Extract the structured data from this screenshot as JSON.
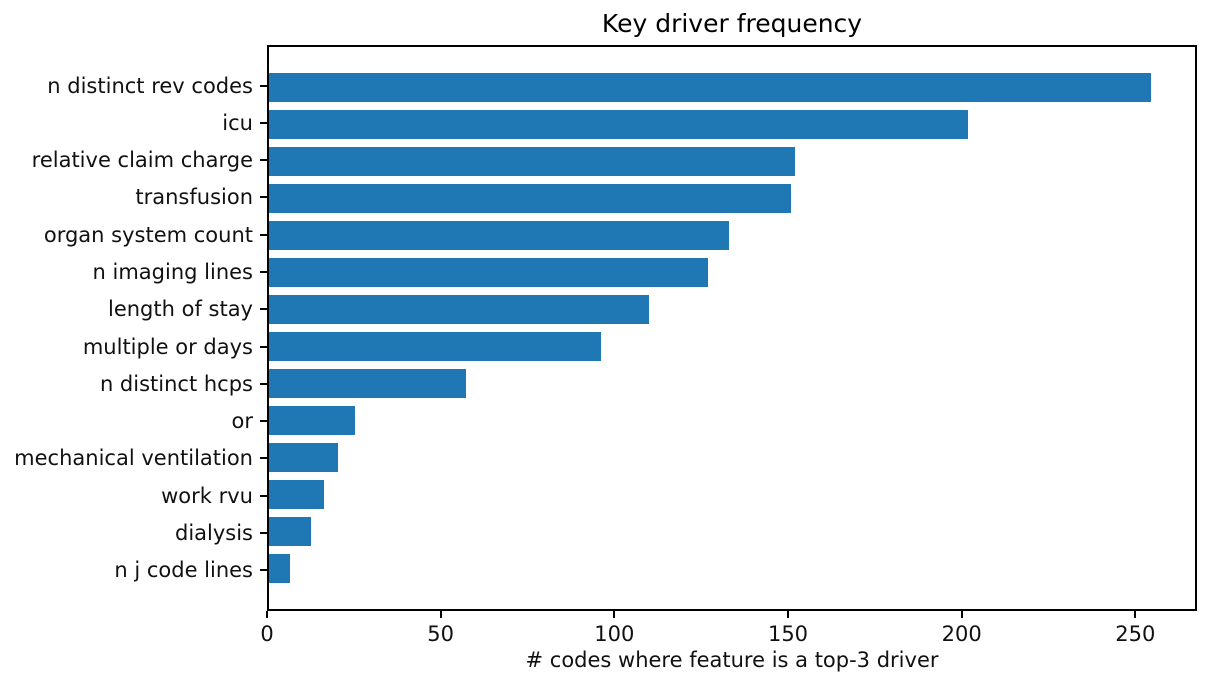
{
  "chart_data": {
    "type": "bar",
    "orientation": "horizontal",
    "title": "Key driver frequency",
    "xlabel": "# codes where feature is a top-3 driver",
    "ylabel": "",
    "categories": [
      "n distinct rev codes",
      "icu",
      "relative claim charge",
      "transfusion",
      "organ system count",
      "n imaging lines",
      "length of stay",
      "multiple or days",
      "n distinct hcps",
      "or",
      "mechanical ventilation",
      "work rvu",
      "dialysis",
      "n j code lines"
    ],
    "values": [
      255,
      202,
      152,
      151,
      133,
      127,
      110,
      96,
      57,
      25,
      20,
      16,
      12,
      6
    ],
    "xticks": [
      0,
      50,
      100,
      150,
      200,
      250
    ],
    "xlim": [
      0,
      267.75
    ],
    "bar_color": "#1f77b4",
    "bar_rel_height": 0.8,
    "background_color": "#ffffff",
    "grid": false,
    "legend_position": "none"
  }
}
